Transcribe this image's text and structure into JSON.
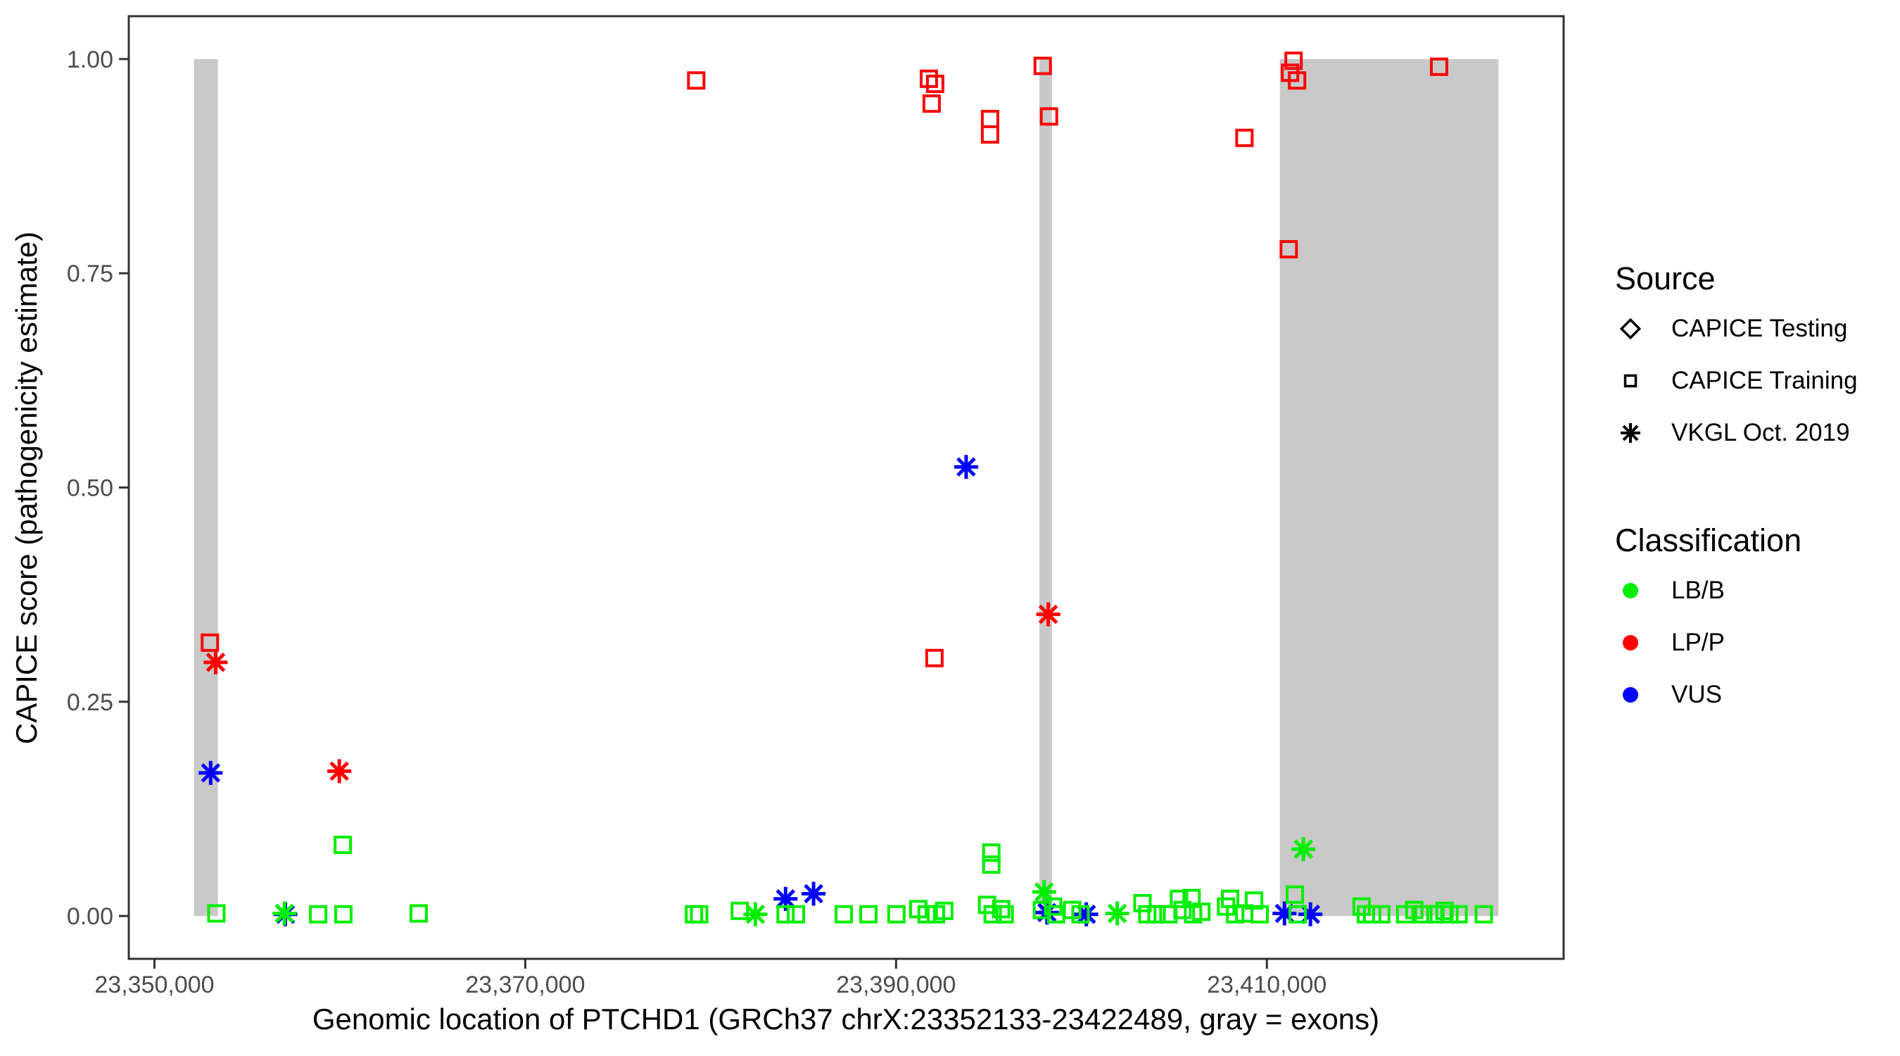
{
  "chart_data": {
    "type": "scatter",
    "title": "",
    "xlabel": "Genomic location of PTCHD1 (GRCh37 chrX:23352133-23422489, gray = exons)",
    "ylabel": "CAPICE score (pathogenicity estimate)",
    "xlim": [
      23348615,
      23426007
    ],
    "ylim": [
      -0.05,
      1.05
    ],
    "grid": "off",
    "legend_position": "right",
    "x_ticks": [
      {
        "value": 23350000,
        "label": "23,350,000"
      },
      {
        "value": 23370000,
        "label": "23,370,000"
      },
      {
        "value": 23390000,
        "label": "23,390,000"
      },
      {
        "value": 23410000,
        "label": "23,410,000"
      }
    ],
    "y_ticks": [
      {
        "value": 0.0,
        "label": "0.00"
      },
      {
        "value": 0.25,
        "label": "0.25"
      },
      {
        "value": 0.5,
        "label": "0.50"
      },
      {
        "value": 0.75,
        "label": "0.75"
      },
      {
        "value": 1.0,
        "label": "1.00"
      }
    ],
    "exon_color": "#c9c9c9",
    "exons": [
      {
        "start": 23352133,
        "end": 23353420
      },
      {
        "start": 23397730,
        "end": 23398410
      },
      {
        "start": 23410700,
        "end": 23422489
      }
    ],
    "colors": {
      "LB/B": "#00ee00",
      "LP/P": "#ff0000",
      "VUS": "#0000ff"
    },
    "shapes": {
      "CAPICE Testing": "diamond",
      "CAPICE Training": "square",
      "VKGL Oct. 2019": "asterisk"
    },
    "points": [
      {
        "bp": 23352990,
        "score": 0.319,
        "cls": "LP/P",
        "src": "CAPICE Training"
      },
      {
        "bp": 23379220,
        "score": 0.975,
        "cls": "LP/P",
        "src": "CAPICE Training"
      },
      {
        "bp": 23391770,
        "score": 0.977,
        "cls": "LP/P",
        "src": "CAPICE Training"
      },
      {
        "bp": 23392110,
        "score": 0.971,
        "cls": "LP/P",
        "src": "CAPICE Training"
      },
      {
        "bp": 23391920,
        "score": 0.948,
        "cls": "LP/P",
        "src": "CAPICE Training"
      },
      {
        "bp": 23392070,
        "score": 0.301,
        "cls": "LP/P",
        "src": "CAPICE Training"
      },
      {
        "bp": 23395070,
        "score": 0.93,
        "cls": "LP/P",
        "src": "CAPICE Training"
      },
      {
        "bp": 23395070,
        "score": 0.912,
        "cls": "LP/P",
        "src": "CAPICE Training"
      },
      {
        "bp": 23397910,
        "score": 0.992,
        "cls": "LP/P",
        "src": "CAPICE Training"
      },
      {
        "bp": 23398250,
        "score": 0.933,
        "cls": "LP/P",
        "src": "CAPICE Training"
      },
      {
        "bp": 23408790,
        "score": 0.908,
        "cls": "LP/P",
        "src": "CAPICE Training"
      },
      {
        "bp": 23411250,
        "score": 0.984,
        "cls": "LP/P",
        "src": "CAPICE Training"
      },
      {
        "bp": 23411440,
        "score": 0.998,
        "cls": "LP/P",
        "src": "CAPICE Training"
      },
      {
        "bp": 23411630,
        "score": 0.975,
        "cls": "LP/P",
        "src": "CAPICE Training"
      },
      {
        "bp": 23411180,
        "score": 0.778,
        "cls": "LP/P",
        "src": "CAPICE Training"
      },
      {
        "bp": 23419290,
        "score": 0.991,
        "cls": "LP/P",
        "src": "CAPICE Training"
      },
      {
        "bp": 23353300,
        "score": 0.296,
        "cls": "LP/P",
        "src": "VKGL Oct. 2019"
      },
      {
        "bp": 23359970,
        "score": 0.169,
        "cls": "LP/P",
        "src": "VKGL Oct. 2019"
      },
      {
        "bp": 23398210,
        "score": 0.352,
        "cls": "LP/P",
        "src": "VKGL Oct. 2019"
      },
      {
        "bp": 23353030,
        "score": 0.167,
        "cls": "VUS",
        "src": "VKGL Oct. 2019"
      },
      {
        "bp": 23357060,
        "score": 0.002,
        "cls": "VUS",
        "src": "VKGL Oct. 2019"
      },
      {
        "bp": 23384040,
        "score": 0.02,
        "cls": "VUS",
        "src": "VKGL Oct. 2019"
      },
      {
        "bp": 23385550,
        "score": 0.026,
        "cls": "VUS",
        "src": "VKGL Oct. 2019"
      },
      {
        "bp": 23393780,
        "score": 0.524,
        "cls": "VUS",
        "src": "VKGL Oct. 2019"
      },
      {
        "bp": 23398140,
        "score": 0.004,
        "cls": "VUS",
        "src": "VKGL Oct. 2019"
      },
      {
        "bp": 23400260,
        "score": 0.002,
        "cls": "VUS",
        "src": "VKGL Oct. 2019"
      },
      {
        "bp": 23410950,
        "score": 0.003,
        "cls": "VUS",
        "src": "VKGL Oct. 2019"
      },
      {
        "bp": 23412350,
        "score": 0.002,
        "cls": "VUS",
        "src": "VKGL Oct. 2019"
      },
      {
        "bp": 23357010,
        "score": 0.003,
        "cls": "LB/B",
        "src": "VKGL Oct. 2019"
      },
      {
        "bp": 23382410,
        "score": 0.002,
        "cls": "LB/B",
        "src": "VKGL Oct. 2019"
      },
      {
        "bp": 23397990,
        "score": 0.028,
        "cls": "LB/B",
        "src": "VKGL Oct. 2019"
      },
      {
        "bp": 23401930,
        "score": 0.003,
        "cls": "LB/B",
        "src": "VKGL Oct. 2019"
      },
      {
        "bp": 23411970,
        "score": 0.078,
        "cls": "LB/B",
        "src": "VKGL Oct. 2019"
      },
      {
        "bp": 23353340,
        "score": 0.003,
        "cls": "LB/B",
        "src": "CAPICE Training"
      },
      {
        "bp": 23358830,
        "score": 0.002,
        "cls": "LB/B",
        "src": "CAPICE Training"
      },
      {
        "bp": 23360190,
        "score": 0.002,
        "cls": "LB/B",
        "src": "CAPICE Training"
      },
      {
        "bp": 23360160,
        "score": 0.083,
        "cls": "LB/B",
        "src": "CAPICE Training"
      },
      {
        "bp": 23364250,
        "score": 0.003,
        "cls": "LB/B",
        "src": "CAPICE Training"
      },
      {
        "bp": 23379100,
        "score": 0.002,
        "cls": "LB/B",
        "src": "CAPICE Training"
      },
      {
        "bp": 23379380,
        "score": 0.002,
        "cls": "LB/B",
        "src": "CAPICE Training"
      },
      {
        "bp": 23381570,
        "score": 0.006,
        "cls": "LB/B",
        "src": "CAPICE Training"
      },
      {
        "bp": 23384040,
        "score": 0.002,
        "cls": "LB/B",
        "src": "CAPICE Training"
      },
      {
        "bp": 23384600,
        "score": 0.002,
        "cls": "LB/B",
        "src": "CAPICE Training"
      },
      {
        "bp": 23387180,
        "score": 0.002,
        "cls": "LB/B",
        "src": "CAPICE Training"
      },
      {
        "bp": 23388510,
        "score": 0.002,
        "cls": "LB/B",
        "src": "CAPICE Training"
      },
      {
        "bp": 23390020,
        "score": 0.002,
        "cls": "LB/B",
        "src": "CAPICE Training"
      },
      {
        "bp": 23391200,
        "score": 0.008,
        "cls": "LB/B",
        "src": "CAPICE Training"
      },
      {
        "bp": 23391650,
        "score": 0.002,
        "cls": "LB/B",
        "src": "CAPICE Training"
      },
      {
        "bp": 23392150,
        "score": 0.002,
        "cls": "LB/B",
        "src": "CAPICE Training"
      },
      {
        "bp": 23392600,
        "score": 0.006,
        "cls": "LB/B",
        "src": "CAPICE Training"
      },
      {
        "bp": 23394910,
        "score": 0.013,
        "cls": "LB/B",
        "src": "CAPICE Training"
      },
      {
        "bp": 23395140,
        "score": 0.074,
        "cls": "LB/B",
        "src": "CAPICE Training"
      },
      {
        "bp": 23395140,
        "score": 0.06,
        "cls": "LB/B",
        "src": "CAPICE Training"
      },
      {
        "bp": 23395210,
        "score": 0.002,
        "cls": "LB/B",
        "src": "CAPICE Training"
      },
      {
        "bp": 23395670,
        "score": 0.008,
        "cls": "LB/B",
        "src": "CAPICE Training"
      },
      {
        "bp": 23395860,
        "score": 0.002,
        "cls": "LB/B",
        "src": "CAPICE Training"
      },
      {
        "bp": 23397870,
        "score": 0.007,
        "cls": "LB/B",
        "src": "CAPICE Training"
      },
      {
        "bp": 23398470,
        "score": 0.011,
        "cls": "LB/B",
        "src": "CAPICE Training"
      },
      {
        "bp": 23398630,
        "score": 0.002,
        "cls": "LB/B",
        "src": "CAPICE Training"
      },
      {
        "bp": 23399500,
        "score": 0.007,
        "cls": "LB/B",
        "src": "CAPICE Training"
      },
      {
        "bp": 23399950,
        "score": 0.002,
        "cls": "LB/B",
        "src": "CAPICE Training"
      },
      {
        "bp": 23403290,
        "score": 0.015,
        "cls": "LB/B",
        "src": "CAPICE Training"
      },
      {
        "bp": 23403550,
        "score": 0.002,
        "cls": "LB/B",
        "src": "CAPICE Training"
      },
      {
        "bp": 23404050,
        "score": 0.002,
        "cls": "LB/B",
        "src": "CAPICE Training"
      },
      {
        "bp": 23404690,
        "score": 0.002,
        "cls": "LB/B",
        "src": "CAPICE Training"
      },
      {
        "bp": 23405260,
        "score": 0.02,
        "cls": "LB/B",
        "src": "CAPICE Training"
      },
      {
        "bp": 23405450,
        "score": 0.007,
        "cls": "LB/B",
        "src": "CAPICE Training"
      },
      {
        "bp": 23405940,
        "score": 0.021,
        "cls": "LB/B",
        "src": "CAPICE Training"
      },
      {
        "bp": 23406020,
        "score": 0.002,
        "cls": "LB/B",
        "src": "CAPICE Training"
      },
      {
        "bp": 23406470,
        "score": 0.005,
        "cls": "LB/B",
        "src": "CAPICE Training"
      },
      {
        "bp": 23407800,
        "score": 0.011,
        "cls": "LB/B",
        "src": "CAPICE Training"
      },
      {
        "bp": 23408020,
        "score": 0.02,
        "cls": "LB/B",
        "src": "CAPICE Training"
      },
      {
        "bp": 23408290,
        "score": 0.002,
        "cls": "LB/B",
        "src": "CAPICE Training"
      },
      {
        "bp": 23408780,
        "score": 0.003,
        "cls": "LB/B",
        "src": "CAPICE Training"
      },
      {
        "bp": 23409310,
        "score": 0.018,
        "cls": "LB/B",
        "src": "CAPICE Training"
      },
      {
        "bp": 23409610,
        "score": 0.002,
        "cls": "LB/B",
        "src": "CAPICE Training"
      },
      {
        "bp": 23411510,
        "score": 0.025,
        "cls": "LB/B",
        "src": "CAPICE Training"
      },
      {
        "bp": 23411660,
        "score": 0.002,
        "cls": "LB/B",
        "src": "CAPICE Training"
      },
      {
        "bp": 23415110,
        "score": 0.011,
        "cls": "LB/B",
        "src": "CAPICE Training"
      },
      {
        "bp": 23415340,
        "score": 0.002,
        "cls": "LB/B",
        "src": "CAPICE Training"
      },
      {
        "bp": 23415680,
        "score": 0.002,
        "cls": "LB/B",
        "src": "CAPICE Training"
      },
      {
        "bp": 23416170,
        "score": 0.002,
        "cls": "LB/B",
        "src": "CAPICE Training"
      },
      {
        "bp": 23417460,
        "score": 0.002,
        "cls": "LB/B",
        "src": "CAPICE Training"
      },
      {
        "bp": 23417950,
        "score": 0.007,
        "cls": "LB/B",
        "src": "CAPICE Training"
      },
      {
        "bp": 23418440,
        "score": 0.002,
        "cls": "LB/B",
        "src": "CAPICE Training"
      },
      {
        "bp": 23419090,
        "score": 0.002,
        "cls": "LB/B",
        "src": "CAPICE Training"
      },
      {
        "bp": 23419580,
        "score": 0.006,
        "cls": "LB/B",
        "src": "CAPICE Training"
      },
      {
        "bp": 23419850,
        "score": 0.002,
        "cls": "LB/B",
        "src": "CAPICE Training"
      },
      {
        "bp": 23420340,
        "score": 0.002,
        "cls": "LB/B",
        "src": "CAPICE Training"
      },
      {
        "bp": 23421700,
        "score": 0.002,
        "cls": "LB/B",
        "src": "CAPICE Training"
      }
    ]
  },
  "legend": {
    "source": {
      "title": "Source",
      "items": [
        {
          "label": "CAPICE Testing",
          "shape": "diamond"
        },
        {
          "label": "CAPICE Training",
          "shape": "square"
        },
        {
          "label": "VKGL Oct. 2019",
          "shape": "asterisk"
        }
      ]
    },
    "classification": {
      "title": "Classification",
      "items": [
        {
          "label": "LB/B",
          "color": "#00ee00"
        },
        {
          "label": "LP/P",
          "color": "#ff0000"
        },
        {
          "label": "VUS",
          "color": "#0000ff"
        }
      ]
    }
  }
}
